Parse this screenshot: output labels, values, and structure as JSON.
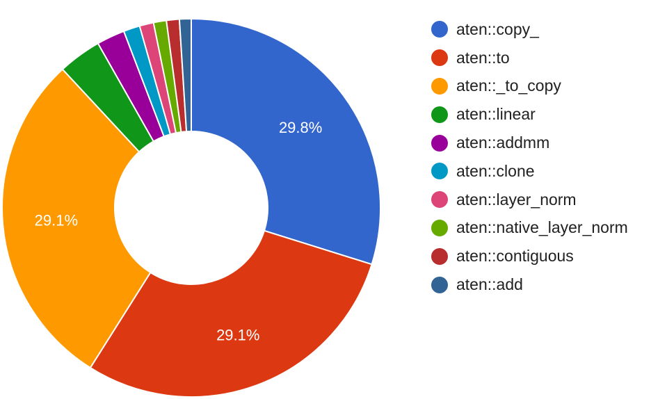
{
  "chart_data": {
    "type": "pie",
    "donut": true,
    "title": "",
    "legend_position": "right",
    "categories": [
      "aten::copy_",
      "aten::to",
      "aten::_to_copy",
      "aten::linear",
      "aten::addmm",
      "aten::clone",
      "aten::layer_norm",
      "aten::native_layer_norm",
      "aten::contiguous",
      "aten::add"
    ],
    "values": [
      29.8,
      29.1,
      29.1,
      3.7,
      2.4,
      1.4,
      1.2,
      1.1,
      1.1,
      1.0
    ],
    "data_labels": [
      "29.8%",
      "29.1%",
      "29.1%",
      "",
      "",
      "",
      "",
      "",
      "",
      ""
    ],
    "colors": [
      "#3366cc",
      "#dc3912",
      "#ff9900",
      "#109618",
      "#990099",
      "#0099c6",
      "#dd4477",
      "#66aa00",
      "#b82e2e",
      "#316395"
    ]
  }
}
